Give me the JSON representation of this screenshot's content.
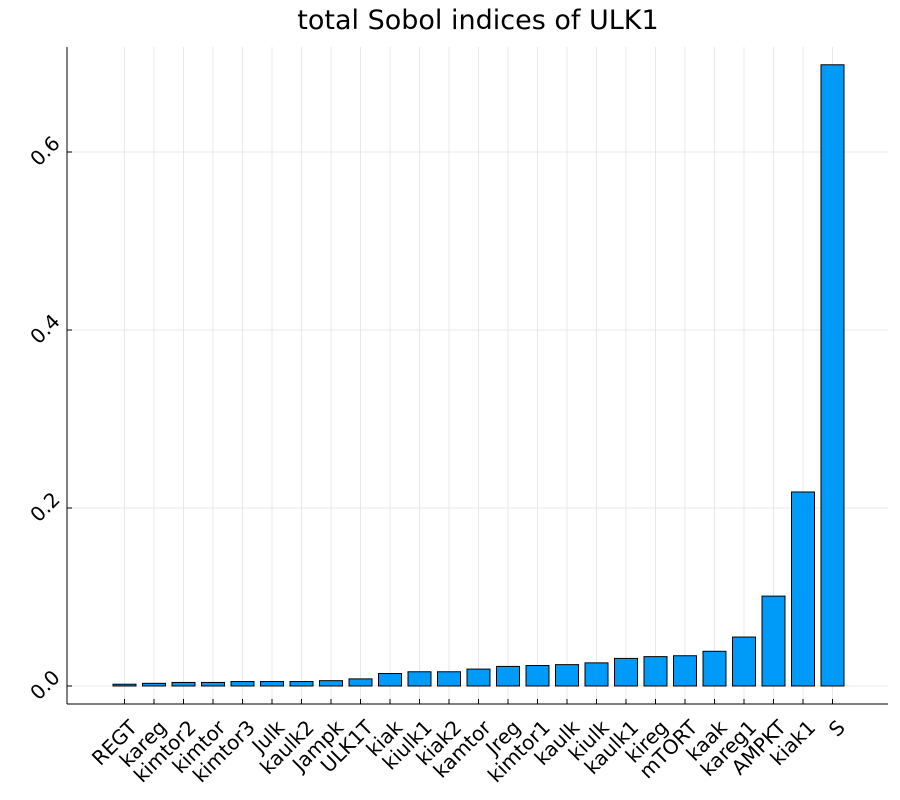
{
  "chart_data": {
    "type": "bar",
    "title": "total Sobol indices of ULK1",
    "xlabel": "",
    "ylabel": "",
    "categories": [
      "REGT",
      "kareg",
      "kimtor2",
      "kimtor",
      "kimtor3",
      "Julk",
      "kaulk2",
      "Jampk",
      "ULK1T",
      "kiak",
      "kiulk1",
      "kiak2",
      "kamtor",
      "Jreg",
      "kimtor1",
      "kaulk",
      "kiulk",
      "kaulk1",
      "kireg",
      "mTORT",
      "kaak",
      "kareg1",
      "AMPKT",
      "kiak1",
      "S"
    ],
    "values": [
      0.002,
      0.003,
      0.004,
      0.004,
      0.005,
      0.005,
      0.005,
      0.006,
      0.008,
      0.014,
      0.016,
      0.016,
      0.019,
      0.022,
      0.023,
      0.024,
      0.026,
      0.031,
      0.033,
      0.034,
      0.039,
      0.055,
      0.101,
      0.218,
      0.698
    ],
    "yticks": [
      "0.0",
      "0.2",
      "0.4",
      "0.6"
    ],
    "ytick_values": [
      0,
      0.2,
      0.4,
      0.6
    ],
    "ylim": [
      -0.02,
      0.72
    ],
    "grid": true,
    "legend": "none",
    "bar_color": "#009af9"
  }
}
